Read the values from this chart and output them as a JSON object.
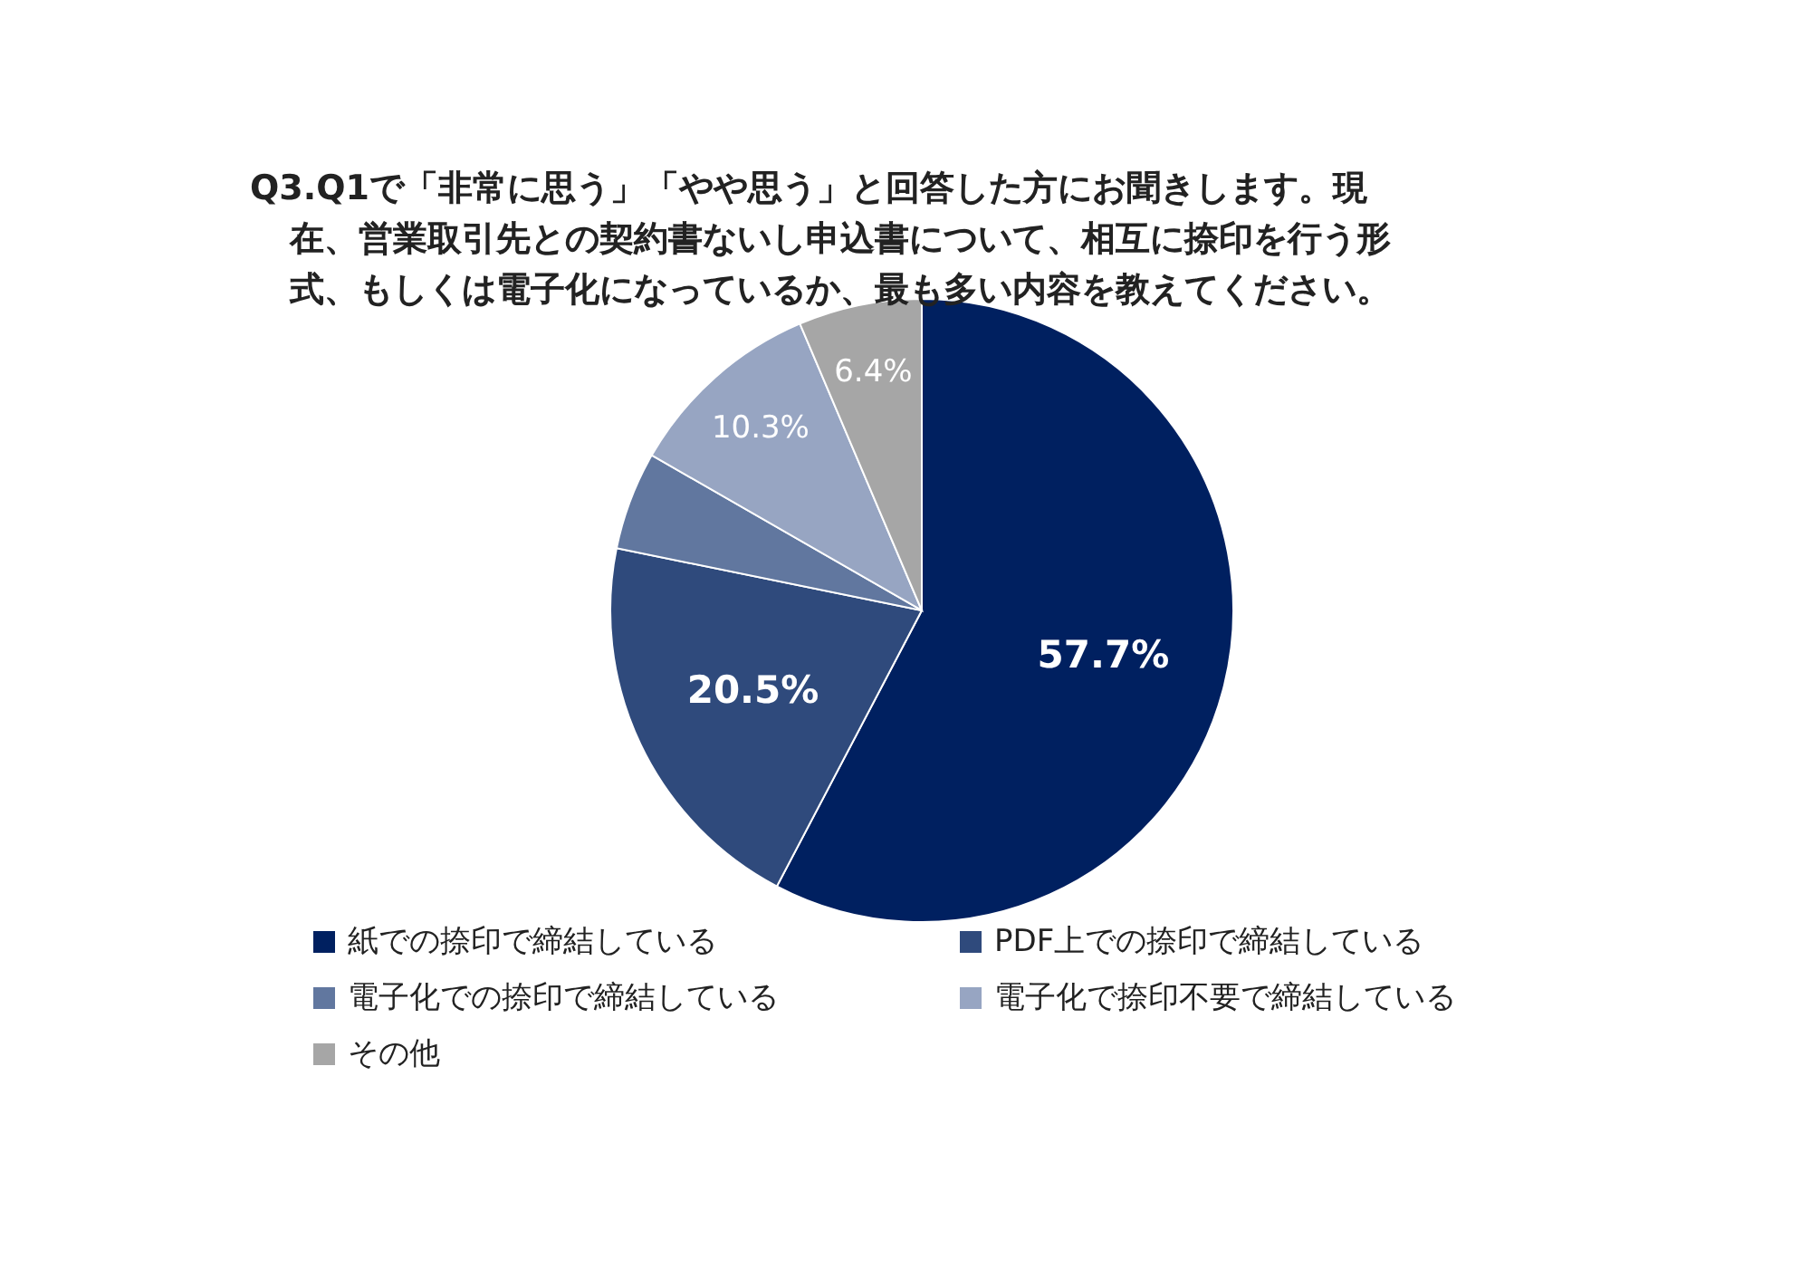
{
  "chart_data": {
    "type": "pie",
    "title": "Q3.Q1で「非常に思う」「やや思う」と回答した方にお聞きします。現在、営業取引先との契約書ないし申込書について、相互に捺印を行う形式、もしくは電子化になっているか、最も多い内容を教えてください。",
    "categories": [
      "紙での捺印で締結している",
      "PDF上での捺印で締結している",
      "電子化での捺印で締結している",
      "電子化で捺印不要で締結している",
      "その他"
    ],
    "values": [
      57.7,
      20.5,
      5.1,
      10.3,
      6.4
    ],
    "colors": [
      "#002060",
      "#2f4a7c",
      "#61779f",
      "#97a5c2",
      "#a6a6a6"
    ],
    "value_labels": [
      "57.7%",
      "20.5%",
      null,
      "10.3%",
      "6.4%"
    ],
    "legend": "bottom"
  }
}
